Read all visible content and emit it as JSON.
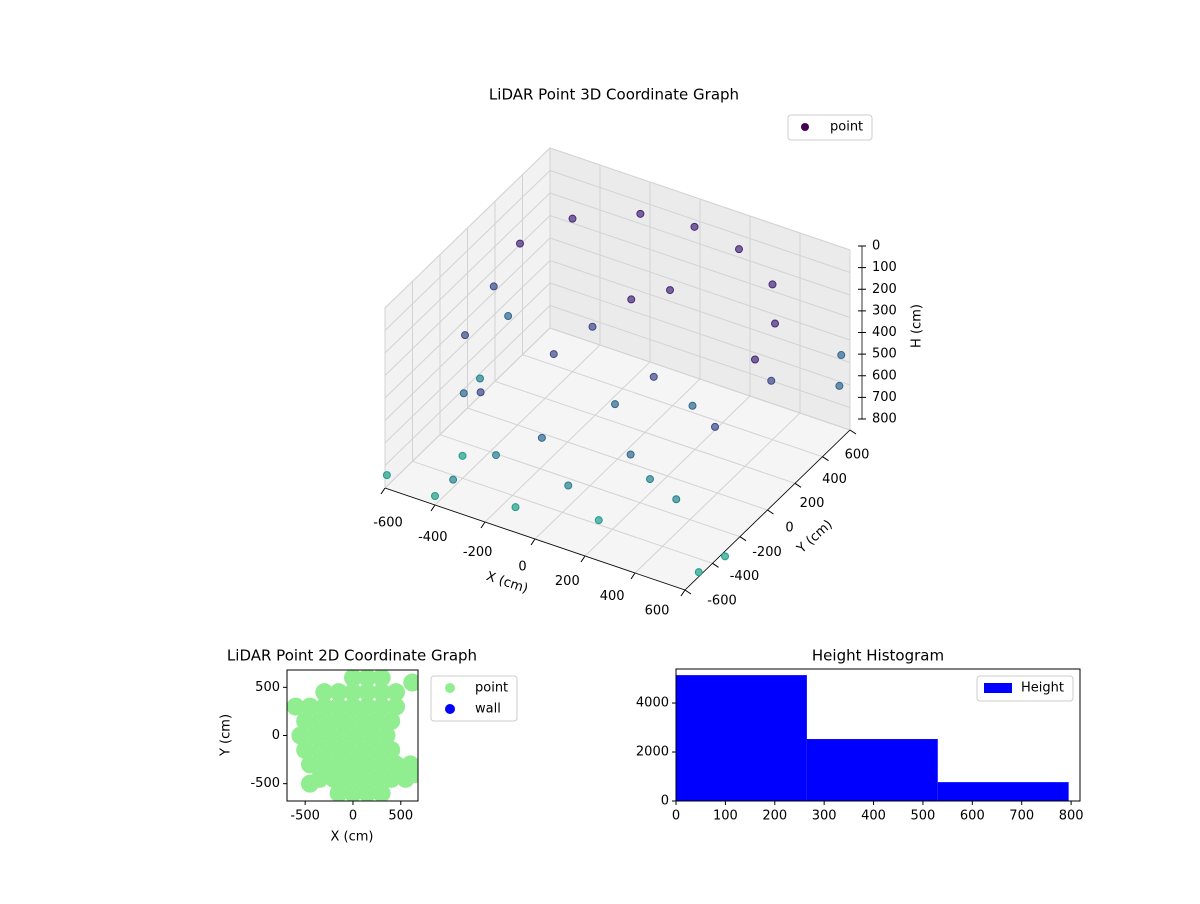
{
  "chart_data": [
    {
      "type": "scatter3d",
      "title": "LiDAR Point 3D Coordinate Graph",
      "xlabel": "X (cm)",
      "ylabel": "Y (cm)",
      "zlabel": "H (cm)",
      "xlim": [
        -600,
        600
      ],
      "ylim": [
        -600,
        600
      ],
      "zlim": [
        0,
        800
      ],
      "z_inverted": true,
      "xticks": [
        -600,
        -400,
        -200,
        0,
        200,
        400,
        600
      ],
      "yticks": [
        -600,
        -400,
        -200,
        0,
        200,
        400,
        600
      ],
      "zticks": [
        0,
        100,
        200,
        300,
        400,
        500,
        600,
        700,
        800
      ],
      "grid": true,
      "legend": "upper right",
      "cmap": "viridis",
      "series": [
        {
          "name": "point",
          "color": "#440154",
          "x": [
            -500,
            -400,
            -200,
            0,
            200,
            400,
            520,
            550,
            -550,
            -500,
            -300,
            0,
            300,
            500,
            560,
            -520,
            -450,
            -200,
            100,
            350,
            -550,
            -400,
            -100,
            200,
            400,
            0,
            100,
            -100,
            200,
            100,
            -200,
            300,
            -620,
            -400,
            650,
            600,
            620,
            640,
            -300
          ],
          "y": [
            200,
            400,
            530,
            560,
            520,
            400,
            200,
            0,
            100,
            -200,
            -450,
            -550,
            -450,
            -200,
            100,
            150,
            -300,
            -520,
            -540,
            -400,
            0,
            -400,
            -560,
            -500,
            -300,
            100,
            200,
            0,
            -100,
            -200,
            -100,
            0,
            -550,
            -600,
            -400,
            -500,
            500,
            450,
            -650
          ],
          "z": [
            150,
            120,
            100,
            100,
            100,
            110,
            120,
            150,
            300,
            320,
            350,
            380,
            400,
            350,
            300,
            450,
            500,
            550,
            560,
            520,
            650,
            700,
            720,
            700,
            650,
            150,
            130,
            250,
            300,
            400,
            350,
            450,
            780,
            760,
            750,
            780,
            400,
            500,
            620
          ]
        }
      ]
    },
    {
      "type": "scatter",
      "title": "LiDAR Point 2D Coordinate Graph",
      "xlabel": "X (cm)",
      "ylabel": "Y (cm)",
      "xlim": [
        -690,
        680
      ],
      "ylim": [
        -680,
        680
      ],
      "xticks": [
        -500,
        0,
        500
      ],
      "yticks": [
        -500,
        0,
        500
      ],
      "legend": "outside right",
      "series": [
        {
          "name": "point",
          "color": "#90ee90",
          "x": [
            0,
            150,
            300,
            -300,
            -150,
            0,
            150,
            300,
            450,
            -450,
            -300,
            -150,
            0,
            150,
            300,
            450,
            -500,
            -350,
            -200,
            -50,
            100,
            250,
            400,
            -550,
            -400,
            -250,
            -100,
            50,
            200,
            350,
            -500,
            -350,
            -200,
            -50,
            100,
            250,
            400,
            -450,
            -300,
            -150,
            0,
            150,
            300,
            450,
            600,
            -350,
            -200,
            -50,
            100,
            250,
            400,
            550,
            -150,
            0,
            150,
            300,
            -600,
            -450,
            620,
            650
          ],
          "y": [
            600,
            600,
            600,
            450,
            450,
            450,
            450,
            450,
            450,
            300,
            300,
            300,
            300,
            300,
            300,
            300,
            150,
            150,
            150,
            150,
            150,
            150,
            150,
            0,
            0,
            0,
            0,
            0,
            0,
            0,
            -150,
            -150,
            -150,
            -150,
            -150,
            -150,
            -150,
            -300,
            -300,
            -300,
            -300,
            -300,
            -300,
            -300,
            -300,
            -450,
            -450,
            -450,
            -450,
            -450,
            -450,
            -450,
            -600,
            -600,
            -600,
            -600,
            300,
            -500,
            550,
            -400
          ]
        },
        {
          "name": "wall",
          "color": "#0000ff",
          "x": [],
          "y": []
        }
      ]
    },
    {
      "type": "histogram",
      "title": "Height Histogram",
      "xlim": [
        0,
        818
      ],
      "ylim": [
        0,
        5390
      ],
      "xticks": [
        0,
        100,
        200,
        300,
        400,
        500,
        600,
        700,
        800
      ],
      "yticks": [
        0,
        2000,
        4000
      ],
      "legend": "upper right",
      "bins": [
        0,
        265,
        530,
        795
      ],
      "series": [
        {
          "name": "Height",
          "color": "#0000ff",
          "values": [
            5140,
            2530,
            770
          ]
        }
      ]
    }
  ]
}
